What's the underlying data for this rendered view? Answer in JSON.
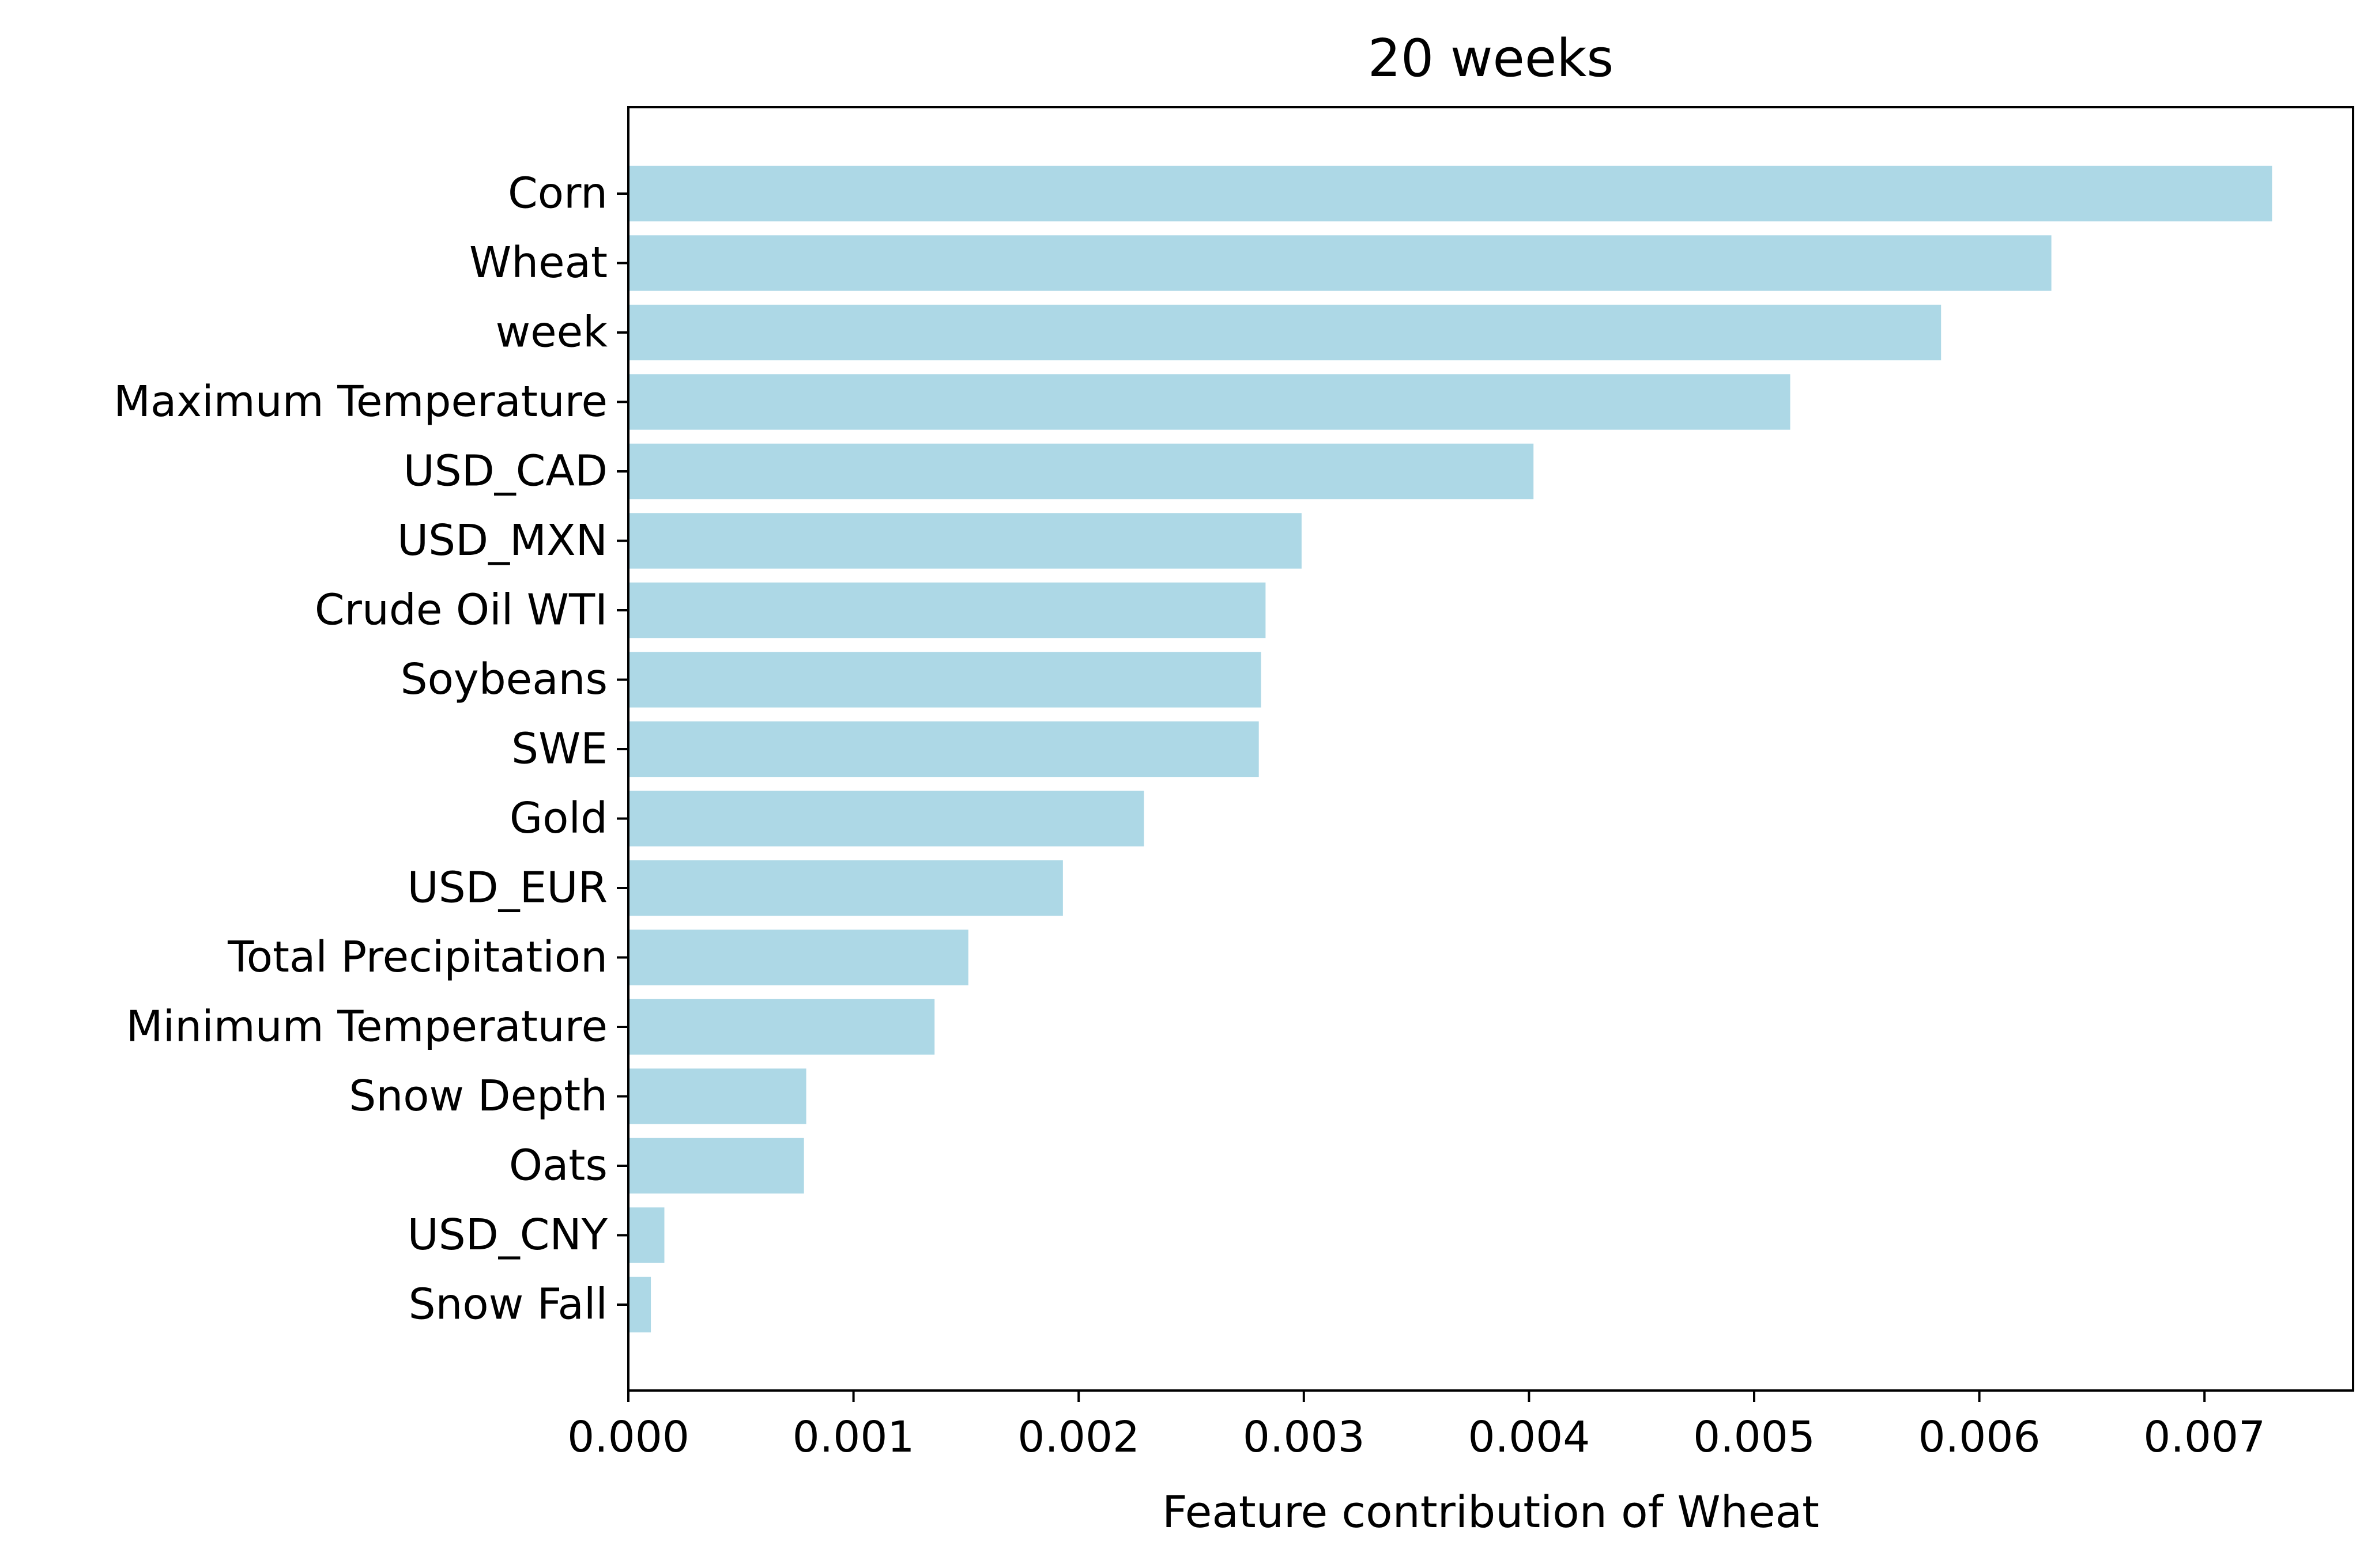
{
  "chart_data": {
    "type": "bar",
    "orientation": "horizontal",
    "title": "20 weeks",
    "xlabel": "Feature contribution of Wheat",
    "ylabel": "",
    "xlim": [
      0,
      0.00766
    ],
    "xticks": [
      0,
      0.001,
      0.002,
      0.003,
      0.004,
      0.005,
      0.006,
      0.007
    ],
    "xtick_labels": [
      "0.000",
      "0.001",
      "0.002",
      "0.003",
      "0.004",
      "0.005",
      "0.006",
      "0.007"
    ],
    "categories": [
      "Corn",
      "Wheat",
      "week",
      "Maximum Temperature",
      "USD_CAD",
      "USD_MXN",
      "Crude Oil WTI",
      "Soybeans",
      "SWE",
      "Gold",
      "USD_EUR",
      "Total Precipitation",
      "Minimum Temperature",
      "Snow Depth",
      "Oats",
      "USD_CNY",
      "Snow Fall"
    ],
    "values": [
      0.0073,
      0.00632,
      0.00583,
      0.00516,
      0.00402,
      0.00299,
      0.00283,
      0.00281,
      0.0028,
      0.00229,
      0.00193,
      0.00151,
      0.00136,
      0.00079,
      0.00078,
      0.00016,
      0.0001
    ],
    "bar_color": "#add8e6",
    "grid": false,
    "legend": "none"
  }
}
